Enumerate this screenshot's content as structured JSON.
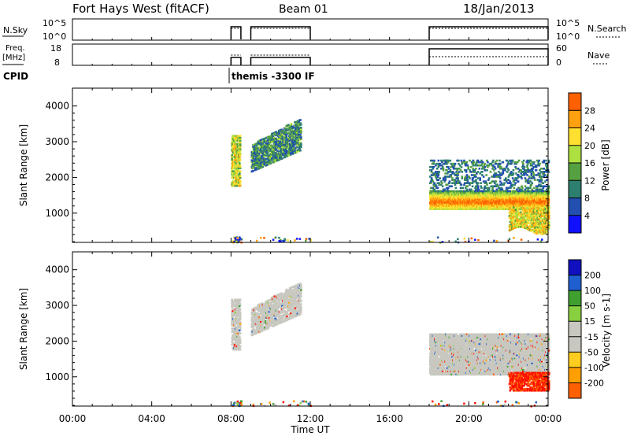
{
  "header": {
    "station": "Fort Hays West (fitACF)",
    "beam": "Beam 01",
    "date": "18/Jan/2013"
  },
  "top_panels": {
    "nsky_label": "N.Sky",
    "nsky_ticks": [
      "10^5",
      "10^0"
    ],
    "nsearch_label": "N.Search",
    "nsearch_ticks": [
      "10^5",
      "10^0"
    ],
    "freq_label_1": "Freq.",
    "freq_label_2": "[MHz]",
    "freq_ticks": [
      "18",
      "8"
    ],
    "nave_label": "Nave",
    "nave_ticks": [
      "60",
      "0"
    ],
    "cpid_label": "CPID",
    "cpid_text": "themis -3300 IF"
  },
  "colors": {
    "power_scale": [
      "#1010ff",
      "#224fb0",
      "#2d7f70",
      "#55a040",
      "#aee040",
      "#ffe030",
      "#ffa010",
      "#ff6000",
      "#ff1000"
    ],
    "velocity_scale": [
      "#1010c0",
      "#1f5fd0",
      "#3fa030",
      "#88d040",
      "#c8c8c0",
      "#c8c8c0",
      "#ffcc20",
      "#ffa000",
      "#ff6000",
      "#ff1000"
    ],
    "ground_scatter": "#c8c8c0"
  },
  "chart_data": [
    {
      "type": "heatmap",
      "panel": "power",
      "xlabel": "",
      "ylabel": "Slant Range [km]",
      "xlim": [
        "00:00",
        "24:00"
      ],
      "ylim": [
        180,
        4500
      ],
      "yticks": [
        1000,
        2000,
        3000,
        4000
      ],
      "colorbar_label": "Power [dB]",
      "colorbar_ticks": [
        4,
        8,
        12,
        16,
        20,
        24,
        28
      ],
      "colorbar_range": [
        0,
        32
      ],
      "observation_intervals": [
        [
          "08:00",
          "08:30"
        ],
        [
          "09:00",
          "12:00"
        ],
        [
          "18:00",
          "24:00"
        ]
      ],
      "scatter_regions": [
        {
          "t": [
            8.0,
            8.45
          ],
          "range": [
            1750,
            3150
          ],
          "power": [
            12,
            26
          ]
        },
        {
          "t": [
            9.0,
            11.5
          ],
          "range": [
            2150,
            3650
          ],
          "power": [
            4,
            18
          ]
        },
        {
          "t": [
            18.0,
            24.0
          ],
          "range": [
            1100,
            1600
          ],
          "power": [
            16,
            30
          ]
        },
        {
          "t": [
            18.0,
            24.0
          ],
          "range": [
            1600,
            2500
          ],
          "power": [
            4,
            14
          ]
        },
        {
          "t": [
            22.0,
            24.0
          ],
          "range": [
            500,
            1200
          ],
          "power": [
            14,
            28
          ]
        }
      ]
    },
    {
      "type": "heatmap",
      "panel": "velocity",
      "xlabel": "Time UT",
      "ylabel": "Slant Range [km]",
      "xlim": [
        "00:00",
        "24:00"
      ],
      "ylim": [
        180,
        4500
      ],
      "xticks": [
        "00:00",
        "04:00",
        "08:00",
        "12:00",
        "16:00",
        "20:00",
        "00:00"
      ],
      "yticks": [
        1000,
        2000,
        3000,
        4000
      ],
      "colorbar_label": "Velocity [m s-1]",
      "colorbar_ticks": [
        200,
        100,
        50,
        15,
        -15,
        -50,
        -100,
        -200
      ],
      "observation_intervals": [
        [
          "08:00",
          "08:30"
        ],
        [
          "09:00",
          "12:00"
        ],
        [
          "18:00",
          "24:00"
        ]
      ],
      "scatter_regions": [
        {
          "t": [
            8.0,
            8.45
          ],
          "range": [
            1750,
            3150
          ],
          "velocity": "ground"
        },
        {
          "t": [
            9.0,
            11.5
          ],
          "range": [
            2150,
            3650
          ],
          "velocity": "ground"
        },
        {
          "t": [
            18.0,
            24.0
          ],
          "range": [
            1050,
            2200
          ],
          "velocity": "ground"
        },
        {
          "t": [
            22.0,
            24.0
          ],
          "range": [
            600,
            1100
          ],
          "velocity": [
            -200,
            -50
          ]
        }
      ]
    }
  ]
}
